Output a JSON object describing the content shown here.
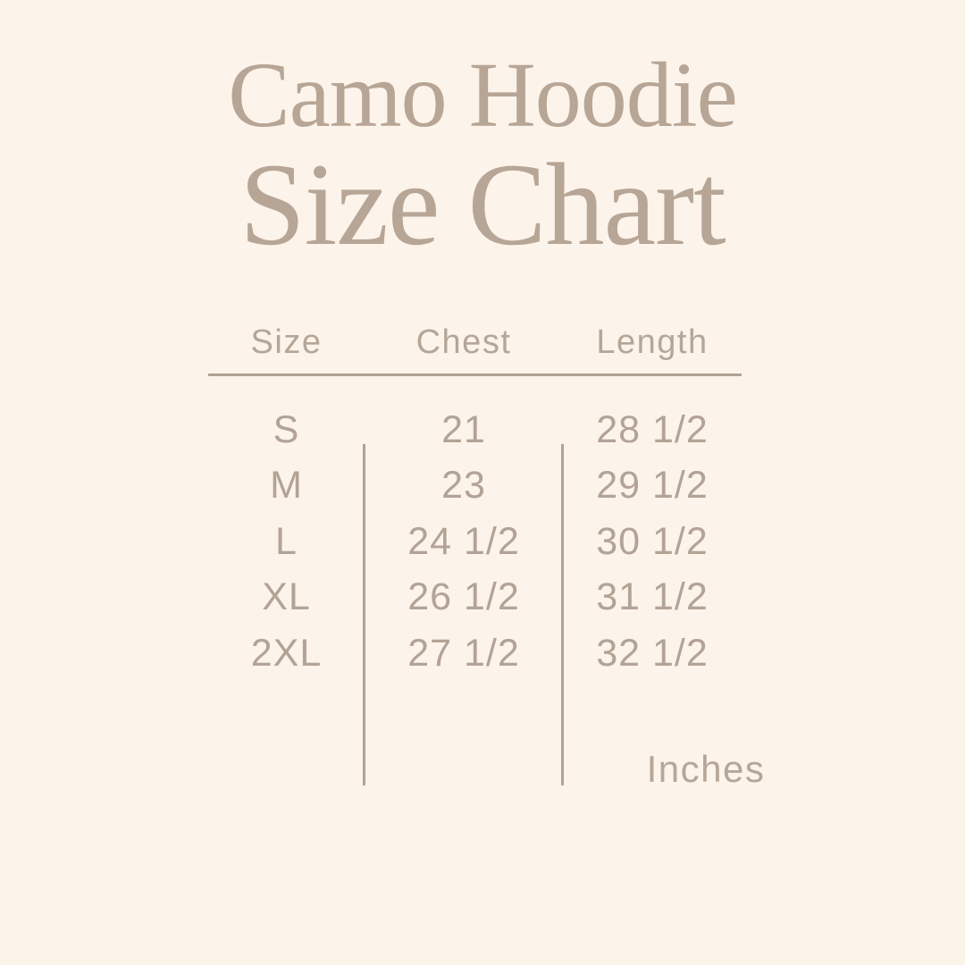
{
  "colors": {
    "background": "#fcf3ea",
    "title_text": "#b7a596",
    "table_text": "#b3a396",
    "line": "#b1a193"
  },
  "header": {
    "title_line1": "Camo Hoodie",
    "title_line2": "Size Chart"
  },
  "table": {
    "columns": [
      "Size",
      "Chest",
      "Length"
    ],
    "rows": [
      {
        "size": "S",
        "chest": "21",
        "length": "28 1/2"
      },
      {
        "size": "M",
        "chest": "23",
        "length": "29 1/2"
      },
      {
        "size": "L",
        "chest": "24 1/2",
        "length": "30 1/2"
      },
      {
        "size": "XL",
        "chest": "26 1/2",
        "length": "31 1/2"
      },
      {
        "size": "2XL",
        "chest": "27 1/2",
        "length": "32 1/2"
      }
    ],
    "unit_label": "Inches"
  },
  "chart_data": {
    "type": "table",
    "title": "Camo Hoodie Size Chart",
    "columns": [
      "Size",
      "Chest",
      "Length"
    ],
    "rows": [
      [
        "S",
        "21",
        "28 1/2"
      ],
      [
        "M",
        "23",
        "29 1/2"
      ],
      [
        "L",
        "24 1/2",
        "30 1/2"
      ],
      [
        "XL",
        "26 1/2",
        "31 1/2"
      ],
      [
        "2XL",
        "27 1/2",
        "32 1/2"
      ]
    ],
    "units": "Inches"
  }
}
